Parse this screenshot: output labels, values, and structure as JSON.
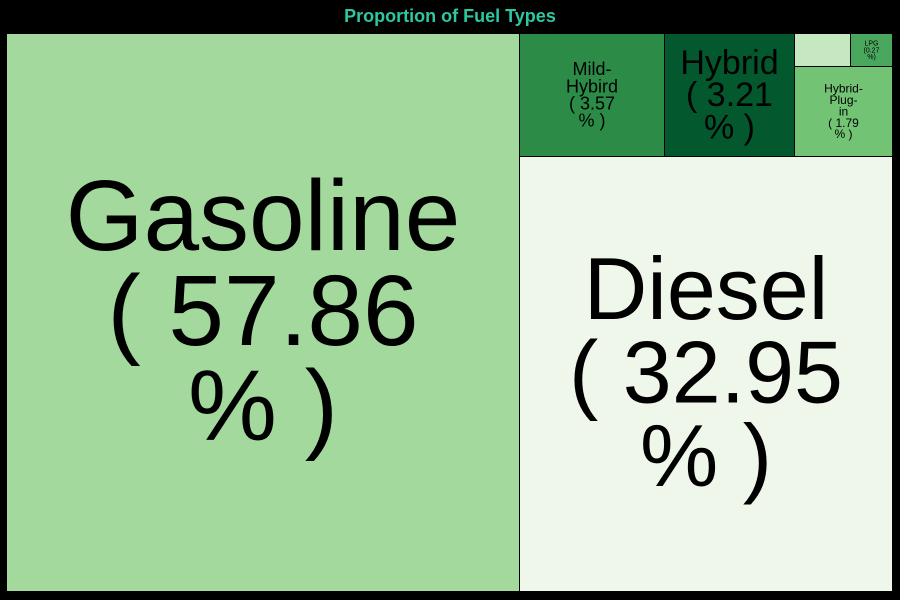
{
  "chart_data": {
    "type": "treemap",
    "title": "Proportion of Fuel Types",
    "title_color": "#2ec7a0",
    "background": "#000000",
    "items": [
      {
        "name": "Gasoline",
        "value": 57.86,
        "label_lines": [
          "Gasoline",
          "( 57.86",
          "% )"
        ],
        "color": "#a3d99c"
      },
      {
        "name": "Diesel",
        "value": 32.95,
        "label_lines": [
          "Diesel",
          "( 32.95",
          "% )"
        ],
        "color": "#eef7ea"
      },
      {
        "name": "Mild-Hybird",
        "value": 3.57,
        "label_lines": [
          "Mild-",
          "Hybird",
          "( 3.57",
          "% )"
        ],
        "color": "#2c8c47"
      },
      {
        "name": "Hybrid",
        "value": 3.21,
        "label_lines": [
          "Hybrid",
          "( 3.21",
          "% )"
        ],
        "color": "#03592d"
      },
      {
        "name": "Hybrid-Plug-in",
        "value": 1.79,
        "label_lines": [
          "Hybrid-",
          "Plug-",
          "in",
          "( 1.79",
          "% )"
        ],
        "color": "#73c374"
      },
      {
        "name": "",
        "value": 0.35,
        "label_lines": [],
        "color": "#c6e8c0"
      },
      {
        "name": "LPG",
        "value": 0.27,
        "label_lines": [
          "LPG",
          "(0.27",
          "%)"
        ],
        "color": "#4aa85e"
      }
    ]
  }
}
